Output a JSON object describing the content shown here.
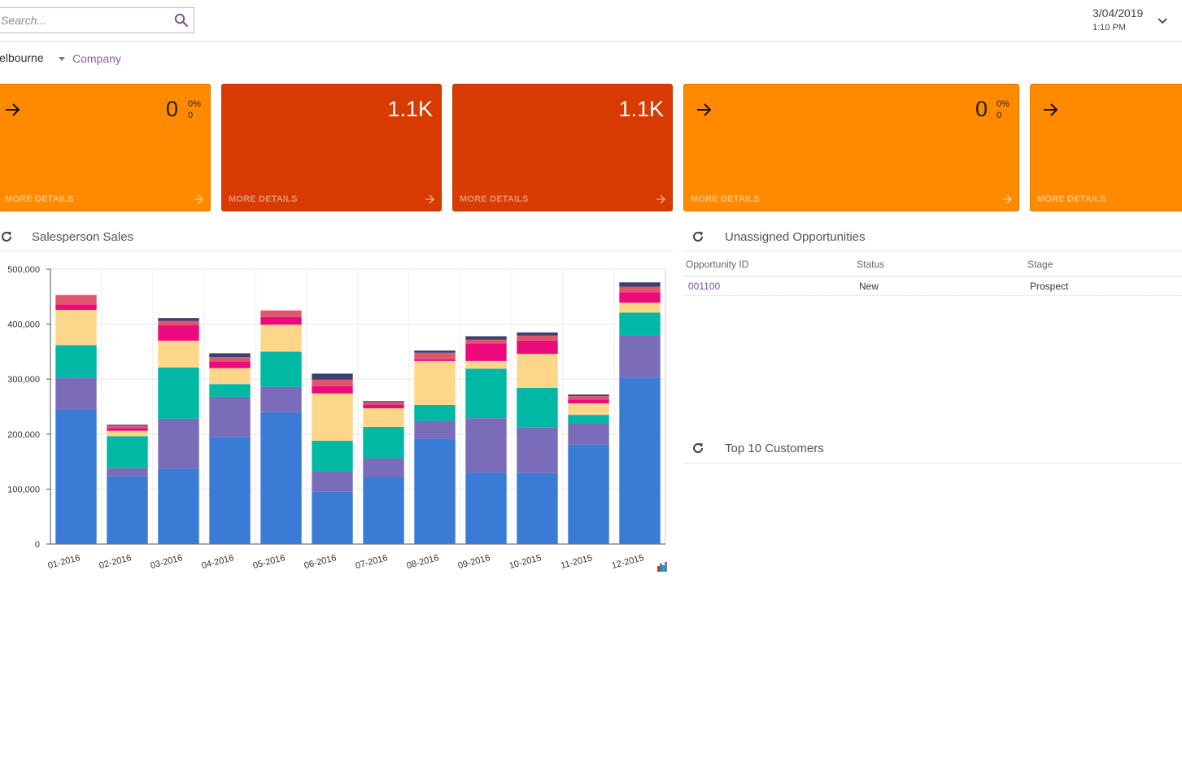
{
  "search": {
    "placeholder": "Search..."
  },
  "datetime": {
    "date": "3/04/2019",
    "time": "1:10 PM"
  },
  "branch": {
    "name": "lelbourne",
    "company_link": "Company"
  },
  "tiles": [
    {
      "value": "0",
      "pct": "0%",
      "sub": "0",
      "more": "MORE DETAILS"
    },
    {
      "value": "1.1K",
      "more": "MORE DETAILS"
    },
    {
      "value": "1.1K",
      "more": "MORE DETAILS"
    },
    {
      "value": "0",
      "pct": "0%",
      "sub": "0",
      "more": "MORE DETAILS"
    },
    {
      "more": "MORE DETAILS"
    }
  ],
  "colors": {
    "orange": "#ff8a00",
    "red": "#d83b01",
    "link": "#8a5db0",
    "series": [
      "#3a7bd5",
      "#7b6cba",
      "#00b8a3",
      "#fdd68a",
      "#ec0a7c",
      "#e0566e",
      "#3d3f6e"
    ]
  },
  "widgets": {
    "sales_title": "Salesperson Sales",
    "unassigned_title": "Unassigned Opportunities",
    "top_customers_title": "Top 10 Customers"
  },
  "opportunities": {
    "columns": [
      "Opportunity ID",
      "Status",
      "Stage"
    ],
    "rows": [
      {
        "id": "001100",
        "status": "New",
        "stage": "Prospect"
      }
    ]
  },
  "chart_data": {
    "type": "bar",
    "stacked": true,
    "categories": [
      "01-2016",
      "02-2016",
      "03-2016",
      "04-2016",
      "05-2016",
      "06-2016",
      "07-2016",
      "08-2016",
      "09-2016",
      "10-2015",
      "11-2015",
      "12-2015"
    ],
    "series": [
      {
        "values": [
          245000,
          123000,
          137000,
          195000,
          240000,
          95000,
          122000,
          192000,
          130000,
          129000,
          181000,
          303000
        ]
      },
      {
        "values": [
          57000,
          15000,
          91000,
          73000,
          46000,
          38000,
          34000,
          32000,
          99000,
          83000,
          38000,
          77000
        ]
      },
      {
        "values": [
          60000,
          58000,
          93000,
          23000,
          64000,
          55000,
          57000,
          29000,
          90000,
          72000,
          16000,
          41000
        ]
      },
      {
        "values": [
          64000,
          10000,
          49000,
          29000,
          49000,
          86000,
          34000,
          80000,
          14000,
          62000,
          21000,
          18000
        ]
      },
      {
        "values": [
          10000,
          5000,
          28000,
          12000,
          14000,
          13000,
          7000,
          3000,
          32000,
          24000,
          7000,
          19000
        ]
      },
      {
        "values": [
          17000,
          4000,
          8000,
          8000,
          12000,
          12000,
          4000,
          12000,
          7000,
          9000,
          6000,
          10000
        ]
      },
      {
        "values": [
          0,
          2000,
          5000,
          7000,
          0,
          11000,
          2000,
          4000,
          6000,
          6000,
          3000,
          8000
        ]
      }
    ],
    "yticks": [
      "0",
      "100,000",
      "200,000",
      "300,000",
      "400,000",
      "500,000"
    ],
    "ylim": [
      0,
      500000
    ]
  }
}
